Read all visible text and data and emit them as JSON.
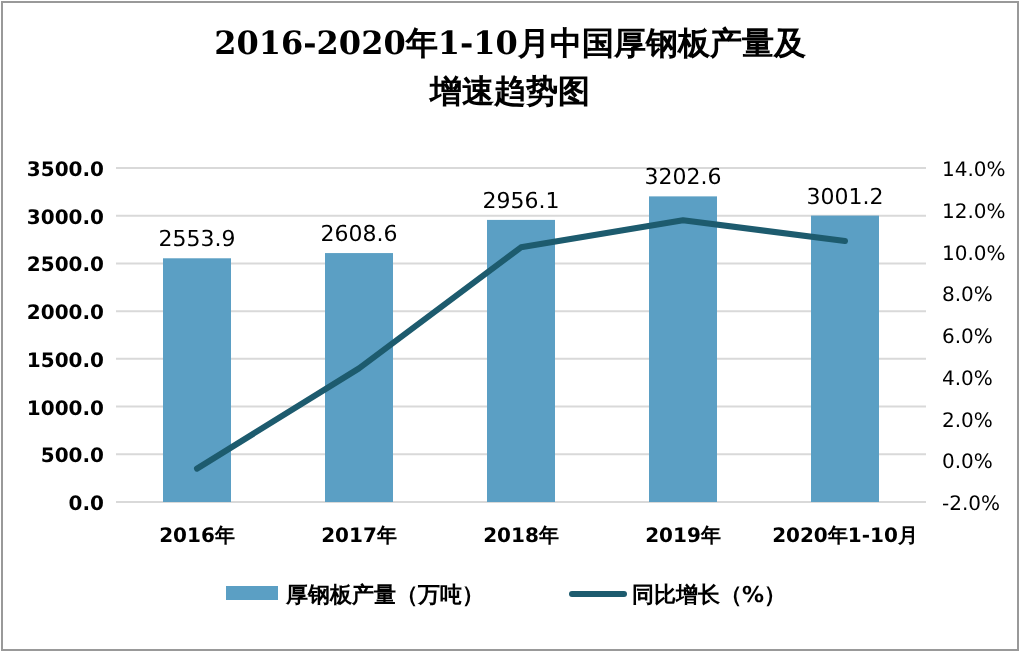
{
  "chart_data": {
    "type": "bar",
    "title": "2016-2020年1-10月中国厚钢板产量及增速趋势图",
    "categories": [
      "2016年",
      "2017年",
      "2018年",
      "2019年",
      "2020年1-10月"
    ],
    "series": [
      {
        "name": "厚钢板产量（万吨）",
        "color": "#5b9fc4",
        "values": [
          2553.9,
          2608.6,
          2956.1,
          3202.6,
          3001.2
        ],
        "value_labels": [
          "2553.9",
          "2608.6",
          "2956.1",
          "3202.6",
          "3001.2"
        ]
      },
      {
        "name": "同比增长（%）",
        "type": "line",
        "axis": "y2",
        "color": "#1d5b6e",
        "values": [
          -0.4,
          4.4,
          10.2,
          11.5,
          10.5
        ]
      }
    ],
    "ylim": [
      0,
      3500
    ],
    "yticks": [
      {
        "value": 0,
        "label": "0.0"
      },
      {
        "value": 500,
        "label": "500.0"
      },
      {
        "value": 1000,
        "label": "1000.0"
      },
      {
        "value": 1500,
        "label": "1500.0"
      },
      {
        "value": 2000,
        "label": "2000.0"
      },
      {
        "value": 2500,
        "label": "2500.0"
      },
      {
        "value": 3000,
        "label": "3000.0"
      },
      {
        "value": 3500,
        "label": "3500.0"
      }
    ],
    "y2lim": [
      -2,
      14
    ],
    "y2ticks": [
      {
        "value": -2,
        "label": "-2.0%"
      },
      {
        "value": 0,
        "label": "0.0%"
      },
      {
        "value": 2,
        "label": "2.0%"
      },
      {
        "value": 4,
        "label": "4.0%"
      },
      {
        "value": 6,
        "label": "6.0%"
      },
      {
        "value": 8,
        "label": "8.0%"
      },
      {
        "value": 10,
        "label": "10.0%"
      },
      {
        "value": 12,
        "label": "12.0%"
      },
      {
        "value": 14,
        "label": "14.0%"
      }
    ],
    "grid": "y",
    "legend": "bottom",
    "marker": "none"
  }
}
